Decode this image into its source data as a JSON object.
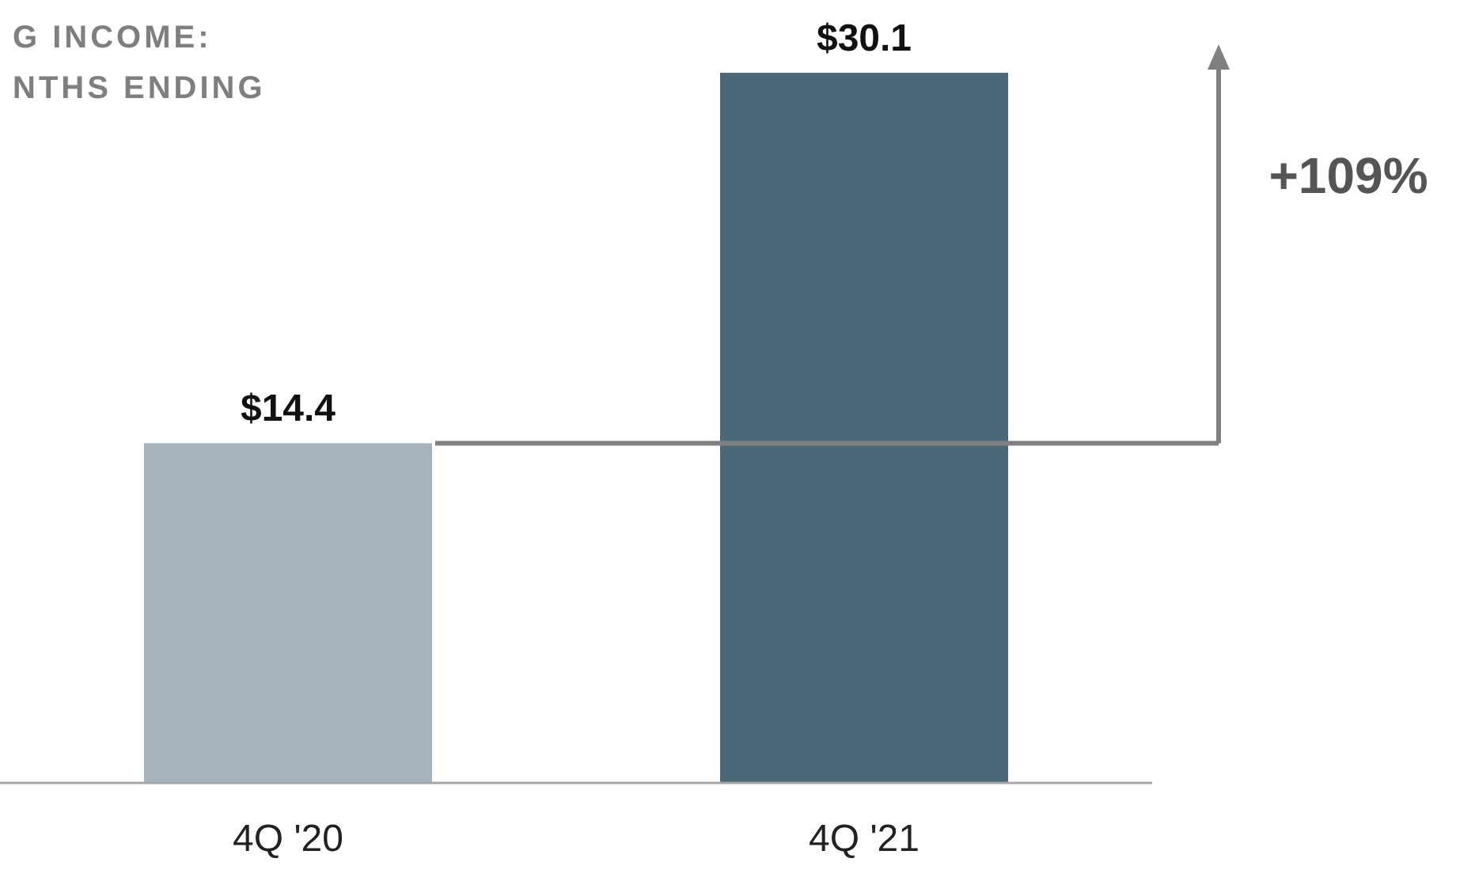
{
  "chart_data": {
    "type": "bar",
    "title": "G INCOME:\nNTHS ENDING",
    "categories": [
      "4Q '20",
      "4Q '21"
    ],
    "values": [
      14.4,
      30.1
    ],
    "value_labels": [
      "$14.4",
      "$30.1"
    ],
    "colors": [
      "#a6b3bc",
      "#4b6778"
    ],
    "ref_lines": [
      {
        "axis": "y",
        "value": 14.4,
        "color": "#808080"
      }
    ],
    "annotations": [
      "+109%"
    ]
  }
}
